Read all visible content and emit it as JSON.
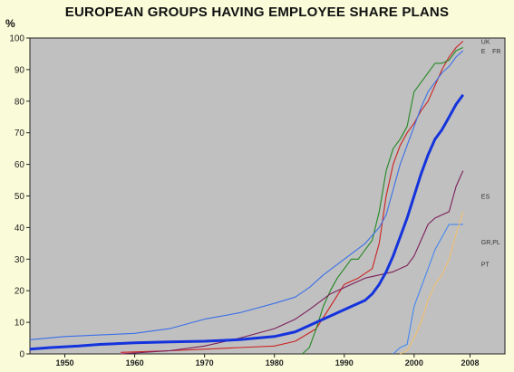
{
  "chart_data": {
    "type": "line",
    "title": "EUROPEAN GROUPS HAVING EMPLOYEE SHARE PLANS",
    "ylabel": "%",
    "xlabel": "",
    "ylim": [
      0,
      100
    ],
    "xlim": [
      1945,
      2013
    ],
    "yticks": [
      0,
      10,
      20,
      30,
      40,
      50,
      60,
      70,
      80,
      90,
      100
    ],
    "xticks": [
      1950,
      1960,
      1970,
      1980,
      1990,
      2000,
      2008
    ],
    "xtick_labels": [
      "1950",
      "1960",
      "1970",
      "1980",
      "1990",
      "2000",
      "2008"
    ],
    "grid": false,
    "plot_background": "#c0c0c0",
    "series": [
      {
        "name": "UK",
        "color": "#cc2222",
        "width": 1.1,
        "label_at": [
          2009.6,
          99
        ],
        "points": [
          [
            1958,
            0.5
          ],
          [
            1965,
            1
          ],
          [
            1970,
            1.5
          ],
          [
            1975,
            2
          ],
          [
            1980,
            2.5
          ],
          [
            1983,
            4
          ],
          [
            1986,
            8
          ],
          [
            1988,
            15
          ],
          [
            1990,
            22
          ],
          [
            1992,
            24
          ],
          [
            1994,
            27
          ],
          [
            1995,
            35
          ],
          [
            1996,
            50
          ],
          [
            1997,
            60
          ],
          [
            1998,
            66
          ],
          [
            1999,
            70
          ],
          [
            2000,
            73
          ],
          [
            2001,
            77
          ],
          [
            2002,
            80
          ],
          [
            2003,
            85
          ],
          [
            2004,
            90
          ],
          [
            2005,
            94
          ],
          [
            2006,
            97
          ],
          [
            2007,
            99
          ]
        ]
      },
      {
        "name": "E",
        "color": "#228822",
        "width": 1.1,
        "label_at": [
          2009.6,
          96
        ],
        "points": [
          [
            1984,
            0
          ],
          [
            1985,
            2
          ],
          [
            1986,
            8
          ],
          [
            1987,
            15
          ],
          [
            1988,
            20
          ],
          [
            1989,
            24
          ],
          [
            1990,
            27
          ],
          [
            1991,
            30
          ],
          [
            1992,
            30
          ],
          [
            1993,
            33
          ],
          [
            1994,
            36
          ],
          [
            1995,
            45
          ],
          [
            1996,
            58
          ],
          [
            1997,
            65
          ],
          [
            1998,
            68
          ],
          [
            1999,
            72
          ],
          [
            2000,
            83
          ],
          [
            2001,
            86
          ],
          [
            2002,
            89
          ],
          [
            2003,
            92
          ],
          [
            2004,
            92
          ],
          [
            2005,
            93
          ],
          [
            2006,
            96
          ],
          [
            2007,
            97
          ]
        ]
      },
      {
        "name": "FR",
        "color": "#3a6fe8",
        "width": 1.1,
        "label_at": [
          2011.2,
          96
        ],
        "points": [
          [
            1945,
            4.5
          ],
          [
            1950,
            5.5
          ],
          [
            1955,
            6
          ],
          [
            1960,
            6.5
          ],
          [
            1965,
            8
          ],
          [
            1970,
            11
          ],
          [
            1975,
            13
          ],
          [
            1980,
            16
          ],
          [
            1983,
            18
          ],
          [
            1985,
            21
          ],
          [
            1987,
            25
          ],
          [
            1990,
            30
          ],
          [
            1993,
            35
          ],
          [
            1995,
            40
          ],
          [
            1996,
            44
          ],
          [
            1997,
            52
          ],
          [
            1998,
            60
          ],
          [
            1999,
            66
          ],
          [
            2000,
            72
          ],
          [
            2001,
            78
          ],
          [
            2002,
            83
          ],
          [
            2003,
            86
          ],
          [
            2004,
            89
          ],
          [
            2005,
            91
          ],
          [
            2006,
            94
          ],
          [
            2007,
            96
          ]
        ]
      },
      {
        "name": "ES",
        "color": "#7a1e5a",
        "width": 1.1,
        "label_at": [
          2009.6,
          50
        ],
        "points": [
          [
            1958,
            0
          ],
          [
            1965,
            1
          ],
          [
            1970,
            2.5
          ],
          [
            1975,
            5
          ],
          [
            1980,
            8
          ],
          [
            1983,
            11
          ],
          [
            1985,
            14
          ],
          [
            1988,
            19
          ],
          [
            1990,
            21
          ],
          [
            1993,
            24
          ],
          [
            1995,
            25
          ],
          [
            1997,
            26
          ],
          [
            1999,
            28
          ],
          [
            2000,
            31
          ],
          [
            2001,
            36
          ],
          [
            2002,
            41
          ],
          [
            2003,
            43
          ],
          [
            2004,
            44
          ],
          [
            2005,
            45
          ],
          [
            2006,
            53
          ],
          [
            2007,
            58
          ]
        ]
      },
      {
        "name": "GR,PL",
        "color": "#4488ee",
        "width": 1.1,
        "label_at": [
          2009.6,
          35.5
        ],
        "points": [
          [
            1997,
            0
          ],
          [
            1998,
            2
          ],
          [
            1999,
            3
          ],
          [
            2000,
            15
          ],
          [
            2001,
            21
          ],
          [
            2002,
            27
          ],
          [
            2003,
            33
          ],
          [
            2004,
            37
          ],
          [
            2005,
            41
          ],
          [
            2006,
            41
          ],
          [
            2007,
            41
          ]
        ]
      },
      {
        "name": "PT",
        "color": "#f2c070",
        "width": 1.1,
        "label_at": [
          2009.6,
          28.5
        ],
        "points": [
          [
            1998,
            0
          ],
          [
            1999,
            1
          ],
          [
            2000,
            5
          ],
          [
            2001,
            10
          ],
          [
            2002,
            17
          ],
          [
            2003,
            22
          ],
          [
            2004,
            25
          ],
          [
            2005,
            30
          ],
          [
            2006,
            38
          ],
          [
            2007,
            45
          ]
        ]
      },
      {
        "name": "",
        "color": "#1433dd",
        "width": 3,
        "points": [
          [
            1945,
            1.5
          ],
          [
            1948,
            2
          ],
          [
            1952,
            2.5
          ],
          [
            1955,
            3
          ],
          [
            1960,
            3.5
          ],
          [
            1965,
            3.8
          ],
          [
            1970,
            4
          ],
          [
            1975,
            4.5
          ],
          [
            1980,
            5.5
          ],
          [
            1983,
            7
          ],
          [
            1985,
            9
          ],
          [
            1987,
            11
          ],
          [
            1989,
            13
          ],
          [
            1991,
            15
          ],
          [
            1993,
            17
          ],
          [
            1994,
            19
          ],
          [
            1995,
            22
          ],
          [
            1996,
            26
          ],
          [
            1997,
            31
          ],
          [
            1998,
            37
          ],
          [
            1999,
            43
          ],
          [
            2000,
            50
          ],
          [
            2001,
            57
          ],
          [
            2002,
            63
          ],
          [
            2003,
            68
          ],
          [
            2004,
            71
          ],
          [
            2005,
            75
          ],
          [
            2006,
            79
          ],
          [
            2007,
            82
          ]
        ]
      }
    ]
  }
}
